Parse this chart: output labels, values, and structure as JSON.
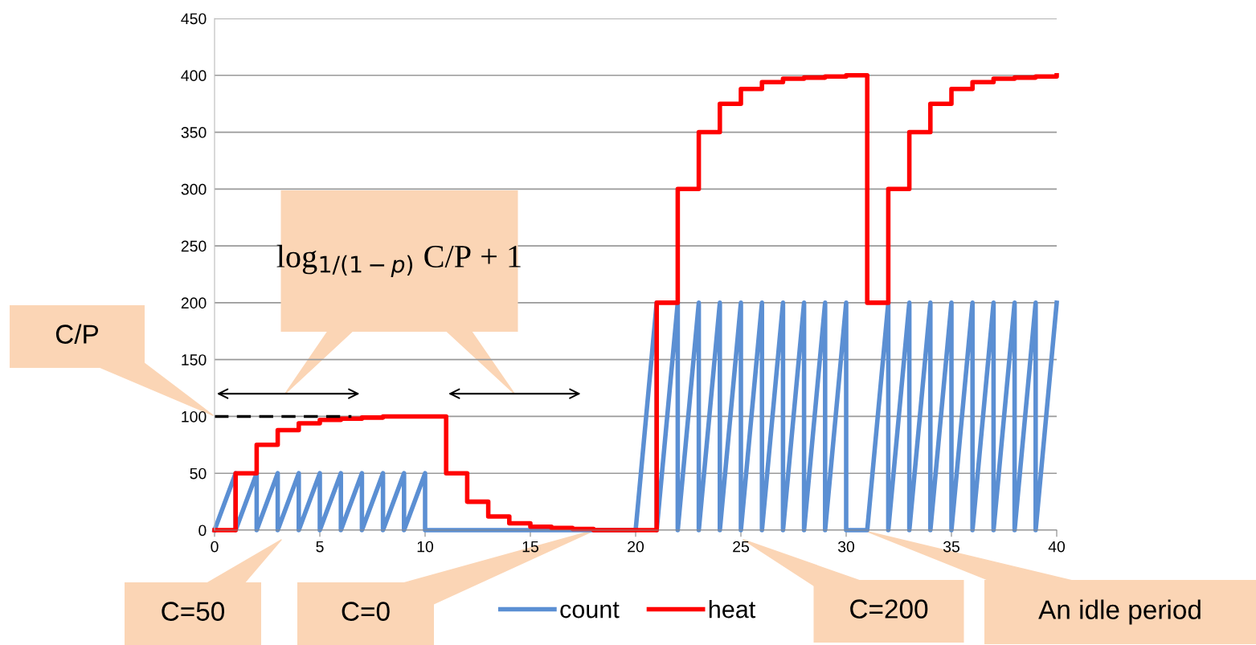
{
  "chart_data": {
    "type": "line",
    "xlim": [
      0,
      40
    ],
    "xticks": [
      0,
      5,
      10,
      15,
      20,
      25,
      30,
      35,
      40
    ],
    "ylim": [
      0,
      450
    ],
    "yticks": [
      0,
      50,
      100,
      150,
      200,
      250,
      300,
      350,
      400,
      450
    ],
    "grid": "y",
    "legend": "bottom",
    "line_style": "solid",
    "marker": "none",
    "series": [
      {
        "name": "count",
        "color": "#5b8fd3",
        "x": [
          0,
          1,
          1,
          2,
          2,
          3,
          3,
          4,
          4,
          5,
          5,
          6,
          6,
          7,
          7,
          8,
          8,
          9,
          9,
          10,
          10,
          20,
          21,
          21,
          22,
          22,
          23,
          23,
          24,
          24,
          25,
          25,
          26,
          26,
          27,
          27,
          28,
          28,
          29,
          29,
          30,
          30,
          31,
          32,
          32,
          33,
          33,
          34,
          34,
          35,
          35,
          36,
          36,
          37,
          37,
          38,
          38,
          39,
          39,
          40
        ],
        "values": [
          0,
          50,
          0,
          50,
          0,
          50,
          0,
          50,
          0,
          50,
          0,
          50,
          0,
          50,
          0,
          50,
          0,
          50,
          0,
          50,
          0,
          0,
          200,
          0,
          200,
          0,
          200,
          0,
          200,
          0,
          200,
          0,
          200,
          0,
          200,
          0,
          200,
          0,
          200,
          0,
          200,
          0,
          0,
          200,
          0,
          200,
          0,
          200,
          0,
          200,
          0,
          200,
          0,
          200,
          0,
          200,
          0,
          200,
          0,
          200
        ]
      },
      {
        "name": "heat",
        "type": "step",
        "color": "#ff0000",
        "x": [
          0,
          1,
          2,
          3,
          4,
          5,
          6,
          7,
          8,
          9,
          10,
          11,
          12,
          13,
          14,
          15,
          16,
          17,
          18,
          19,
          20,
          21,
          22,
          23,
          24,
          25,
          26,
          27,
          28,
          29,
          30,
          31,
          32,
          33,
          34,
          35,
          36,
          37,
          38,
          39,
          40
        ],
        "values": [
          0,
          50,
          75,
          88,
          94,
          97,
          98,
          99,
          100,
          100,
          100,
          50,
          25,
          12,
          6,
          3,
          2,
          1,
          0,
          0,
          0,
          200,
          300,
          350,
          375,
          388,
          394,
          397,
          398,
          399,
          400,
          200,
          300,
          350,
          375,
          388,
          394,
          397,
          398,
          399,
          400
        ]
      },
      {
        "line_style": "dashed",
        "color": "#000000",
        "x": [
          0,
          6.5
        ],
        "values": [
          100,
          100
        ]
      }
    ],
    "annotations": [
      "C/P",
      "log$_{1/(1−p)}$ C/P + 1",
      "C=50",
      "C=0",
      "C=200",
      "An idle period"
    ]
  }
}
